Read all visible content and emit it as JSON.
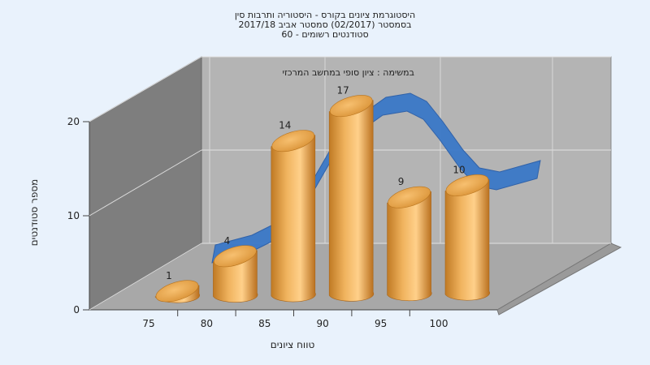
{
  "title_lines": [
    "היסטוגרמת ציונים בקורס - היסטוריה ותרבות סין",
    "בסמסטר  (02/2017)  סמסטר אביב 2017/18",
    "סטודנטים רשומים - 60"
  ],
  "task_label": "במשימה : ציון סופי במחשב המרכזי",
  "chart_data": {
    "type": "bar",
    "categories": [
      "75",
      "80",
      "85",
      "90",
      "95",
      "100"
    ],
    "values": [
      1,
      4,
      14,
      17,
      9,
      10
    ],
    "xlabel": "טווח ציונים",
    "ylabel": "מספר סטודנטים",
    "yticks": [
      "0",
      "10",
      "20"
    ],
    "ylim": [
      0,
      20
    ],
    "curve": "normal-distribution overlay",
    "colors": {
      "bar": "#e8a84a",
      "curve": "#3a78c8",
      "back_wall": "#b4b4b4",
      "side_wall": "#7e7e7e",
      "floor": "#a8a8a8"
    }
  }
}
